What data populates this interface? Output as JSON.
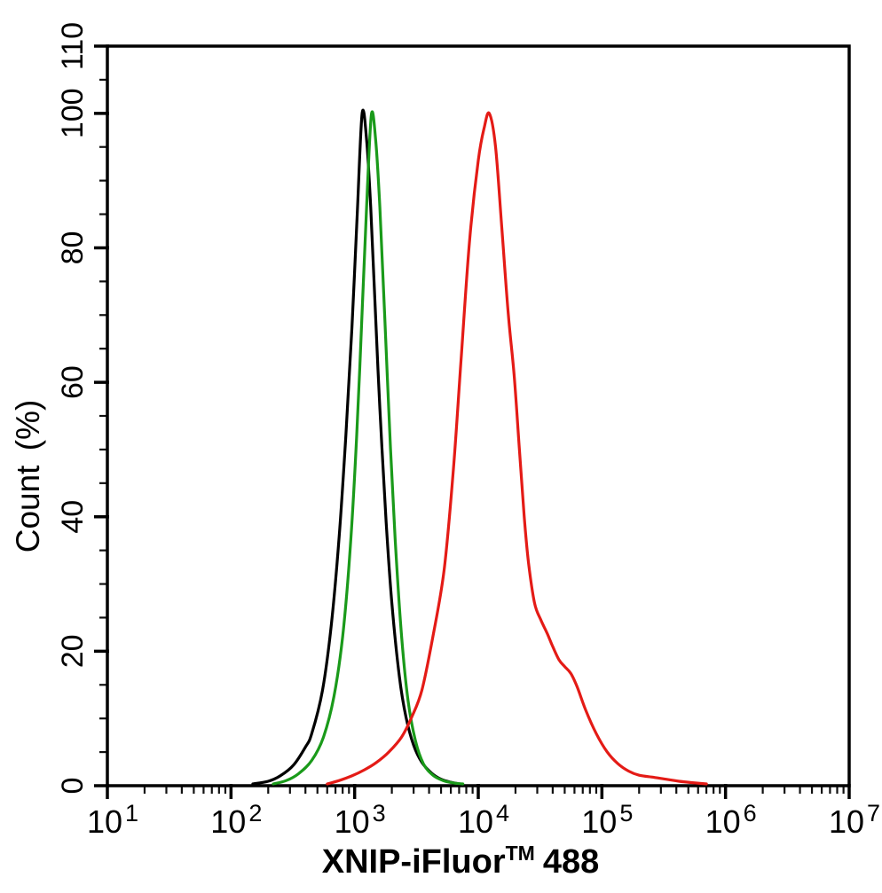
{
  "figure": {
    "background_color": "#ffffff",
    "frame_color": "#000000"
  },
  "chart_data": {
    "type": "line",
    "subtype": "flow-cytometry-histogram-overlay",
    "xlabel": "XNIP-iFluor™ 488",
    "xlabel_parts": {
      "main": "XNIP-iFluor",
      "tm": "TM",
      "suffix": "488"
    },
    "ylabel": "Count (%)",
    "x_scale": "log",
    "x_range": [
      10,
      10000000
    ],
    "x_ticks": [
      {
        "base": "10",
        "exp": "1",
        "value": 10
      },
      {
        "base": "10",
        "exp": "2",
        "value": 100
      },
      {
        "base": "10",
        "exp": "3",
        "value": 1000
      },
      {
        "base": "10",
        "exp": "4",
        "value": 10000
      },
      {
        "base": "10",
        "exp": "5",
        "value": 100000
      },
      {
        "base": "10",
        "exp": "6",
        "value": 1000000
      },
      {
        "base": "10",
        "exp": "7",
        "value": 10000000
      }
    ],
    "x_minor_ticks_per_decade": [
      2,
      3,
      4,
      5,
      6,
      7,
      8,
      9
    ],
    "y_range": [
      0,
      110
    ],
    "y_ticks": [
      0,
      20,
      40,
      60,
      80,
      100,
      110
    ],
    "y_minor_tick_step": 5,
    "grid": false,
    "legend": false,
    "series": [
      {
        "name": "black",
        "color": "#000000",
        "peak_x": 1150,
        "peak_y": 100,
        "points": [
          [
            150,
            0
          ],
          [
            200,
            0.4
          ],
          [
            250,
            1.2
          ],
          [
            320,
            2.8
          ],
          [
            400,
            5.5
          ],
          [
            450,
            7.5
          ],
          [
            550,
            14
          ],
          [
            650,
            24
          ],
          [
            750,
            37
          ],
          [
            850,
            52
          ],
          [
            950,
            68
          ],
          [
            1050,
            85
          ],
          [
            1150,
            100
          ],
          [
            1250,
            96
          ],
          [
            1350,
            86
          ],
          [
            1450,
            73
          ],
          [
            1600,
            56
          ],
          [
            1800,
            39
          ],
          [
            2000,
            27
          ],
          [
            2300,
            16
          ],
          [
            2600,
            10
          ],
          [
            3000,
            5.8
          ],
          [
            3500,
            3.2
          ],
          [
            4200,
            1.6
          ],
          [
            5000,
            0.7
          ],
          [
            6000,
            0.25
          ],
          [
            7000,
            0
          ]
        ]
      },
      {
        "name": "green",
        "color": "#1a9a1a",
        "peak_x": 1370,
        "peak_y": 100,
        "points": [
          [
            220,
            0
          ],
          [
            280,
            0.5
          ],
          [
            350,
            1.5
          ],
          [
            450,
            3.5
          ],
          [
            560,
            7
          ],
          [
            680,
            13
          ],
          [
            800,
            22
          ],
          [
            920,
            35
          ],
          [
            1040,
            52
          ],
          [
            1160,
            72
          ],
          [
            1270,
            89
          ],
          [
            1370,
            100
          ],
          [
            1480,
            96
          ],
          [
            1600,
            86
          ],
          [
            1750,
            70
          ],
          [
            1950,
            50
          ],
          [
            2150,
            35
          ],
          [
            2400,
            22
          ],
          [
            2700,
            12.5
          ],
          [
            3100,
            6.5
          ],
          [
            3600,
            3
          ],
          [
            4300,
            1.3
          ],
          [
            5200,
            0.5
          ],
          [
            6300,
            0.15
          ],
          [
            7500,
            0
          ]
        ]
      },
      {
        "name": "red",
        "color": "#e41b16",
        "peak_x": 12300,
        "peak_y": 100,
        "points": [
          [
            600,
            0
          ],
          [
            750,
            0.5
          ],
          [
            950,
            1.2
          ],
          [
            1200,
            2.1
          ],
          [
            1500,
            3.2
          ],
          [
            1900,
            4.8
          ],
          [
            2400,
            7
          ],
          [
            2900,
            10
          ],
          [
            3500,
            14
          ],
          [
            4300,
            22
          ],
          [
            5300,
            32
          ],
          [
            6300,
            47
          ],
          [
            7300,
            64
          ],
          [
            8500,
            81
          ],
          [
            10000,
            93
          ],
          [
            11200,
            98
          ],
          [
            12300,
            100
          ],
          [
            13800,
            95
          ],
          [
            15500,
            83
          ],
          [
            17500,
            70
          ],
          [
            19500,
            61
          ],
          [
            21500,
            50
          ],
          [
            23500,
            40
          ],
          [
            25500,
            33
          ],
          [
            28500,
            27
          ],
          [
            32000,
            24.5
          ],
          [
            36000,
            22.5
          ],
          [
            40000,
            20.5
          ],
          [
            45000,
            18.5
          ],
          [
            50000,
            17.5
          ],
          [
            56000,
            16.5
          ],
          [
            63000,
            14.5
          ],
          [
            74000,
            11
          ],
          [
            90000,
            7.5
          ],
          [
            110000,
            4.8
          ],
          [
            135000,
            3
          ],
          [
            165000,
            1.9
          ],
          [
            200000,
            1.3
          ],
          [
            260000,
            1.0
          ],
          [
            330000,
            0.7
          ],
          [
            420000,
            0.4
          ],
          [
            530000,
            0.2
          ],
          [
            700000,
            0
          ]
        ]
      }
    ]
  }
}
